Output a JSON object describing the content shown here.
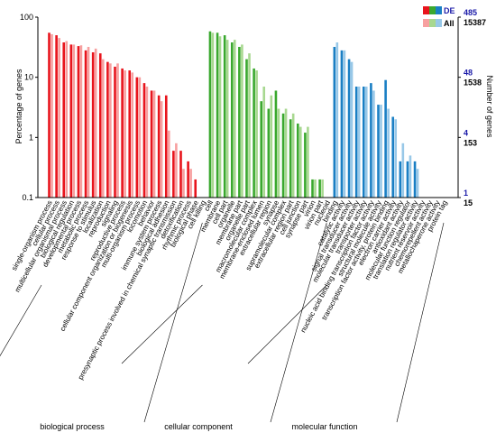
{
  "chart_data": {
    "type": "bar",
    "ylabel_left": "Percentage of genes",
    "ylabel_right": "Number of genes",
    "yscale": "log",
    "ylim": [
      0.1,
      100
    ],
    "left_ticks": [
      "100",
      "10",
      "1",
      "0.1"
    ],
    "right_ticks_de": [
      "485",
      "48",
      "4",
      "1"
    ],
    "right_ticks_all": [
      "15387",
      "1538",
      "153",
      "15"
    ],
    "legend": [
      {
        "name": "DE",
        "colors": [
          "#e8141c",
          "#3aa82e",
          "#1a7fc4"
        ]
      },
      {
        "name": "All",
        "colors": [
          "#f7a0a0",
          "#a8d890",
          "#98c8e8"
        ]
      }
    ],
    "groups": [
      {
        "name": "biological process",
        "color_de": "#e8141c",
        "color_all": "#f7a0a0"
      },
      {
        "name": "cellular component",
        "color_de": "#3aa82e",
        "color_all": "#a8d890"
      },
      {
        "name": "molecular function",
        "color_de": "#1a7fc4",
        "color_all": "#98c8e8"
      }
    ],
    "categories": [
      {
        "name": "single-organism process",
        "group": 0,
        "de": 55,
        "all": 52
      },
      {
        "name": "cellular process",
        "group": 0,
        "de": 50,
        "all": 45
      },
      {
        "name": "multicellular organismal process",
        "group": 0,
        "de": 38,
        "all": 40
      },
      {
        "name": "biological regulation",
        "group": 0,
        "de": 35,
        "all": 35
      },
      {
        "name": "developmental process",
        "group": 0,
        "de": 33,
        "all": 34
      },
      {
        "name": "metabolic process",
        "group": 0,
        "de": 28,
        "all": 32
      },
      {
        "name": "response to stimulus",
        "group": 0,
        "de": 26,
        "all": 30
      },
      {
        "name": "localization",
        "group": 0,
        "de": 25,
        "all": 20
      },
      {
        "name": "reproduction",
        "group": 0,
        "de": 18,
        "all": 17
      },
      {
        "name": "signaling",
        "group": 0,
        "de": 15,
        "all": 17
      },
      {
        "name": "reproductive process",
        "group": 0,
        "de": 14,
        "all": 13
      },
      {
        "name": "cellular component organization or biogenesis",
        "group": 0,
        "de": 13,
        "all": 12
      },
      {
        "name": "multi-organism process",
        "group": 0,
        "de": 10,
        "all": 10
      },
      {
        "name": "locomotion",
        "group": 0,
        "de": 8,
        "all": 7
      },
      {
        "name": "behavior",
        "group": 0,
        "de": 6,
        "all": 6
      },
      {
        "name": "immune system process",
        "group": 0,
        "de": 5,
        "all": 4
      },
      {
        "name": "biological adhesion",
        "group": 0,
        "de": 5,
        "all": 1.3
      },
      {
        "name": "presynaptic process involved in chemical synaptic transmission",
        "group": 0,
        "de": 0.6,
        "all": 0.8
      },
      {
        "name": "detoxification",
        "group": 0,
        "de": 0.6,
        "all": 0.3
      },
      {
        "name": "rhythmic process",
        "group": 0,
        "de": 0.4,
        "all": 0.3
      },
      {
        "name": "biological phase",
        "group": 0,
        "de": 0.2,
        "all": 0
      },
      {
        "name": "cell killing",
        "group": 0,
        "de": 0,
        "all": 0
      },
      {
        "name": "cell",
        "group": 1,
        "de": 58,
        "all": 55
      },
      {
        "name": "membrane",
        "group": 1,
        "de": 55,
        "all": 48
      },
      {
        "name": "cell part",
        "group": 1,
        "de": 50,
        "all": 42
      },
      {
        "name": "organelle",
        "group": 1,
        "de": 38,
        "all": 42
      },
      {
        "name": "membrane part",
        "group": 1,
        "de": 32,
        "all": 35
      },
      {
        "name": "organelle part",
        "group": 1,
        "de": 20,
        "all": 25
      },
      {
        "name": "macromolecular complex",
        "group": 1,
        "de": 14,
        "all": 13
      },
      {
        "name": "membrane-enclosed lumen",
        "group": 1,
        "de": 4,
        "all": 7
      },
      {
        "name": "extracellular region",
        "group": 1,
        "de": 3,
        "all": 5
      },
      {
        "name": "synapse",
        "group": 1,
        "de": 6,
        "all": 3
      },
      {
        "name": "supramolecular complex",
        "group": 1,
        "de": 2.5,
        "all": 3
      },
      {
        "name": "extracellular region part",
        "group": 1,
        "de": 2,
        "all": 2.5
      },
      {
        "name": "cell junction",
        "group": 1,
        "de": 1.7,
        "all": 1.5
      },
      {
        "name": "synapse part",
        "group": 1,
        "de": 1.2,
        "all": 1.5
      },
      {
        "name": "virion",
        "group": 1,
        "de": 0.2,
        "all": 0.2
      },
      {
        "name": "virion part",
        "group": 1,
        "de": 0.2,
        "all": 0.2
      },
      {
        "name": "nucleoid",
        "group": 1,
        "de": 0,
        "all": 0
      },
      {
        "name": "binding",
        "group": 2,
        "de": 32,
        "all": 38
      },
      {
        "name": "catalytic activity",
        "group": 2,
        "de": 28,
        "all": 28
      },
      {
        "name": "signal transducer activity",
        "group": 2,
        "de": 20,
        "all": 18
      },
      {
        "name": "molecular transducer activity",
        "group": 2,
        "de": 7,
        "all": 7
      },
      {
        "name": "transporter activity",
        "group": 2,
        "de": 7,
        "all": 7
      },
      {
        "name": "nucleic acid binding transcription factor activity",
        "group": 2,
        "de": 8,
        "all": 6
      },
      {
        "name": "structural molecule activity",
        "group": 2,
        "de": 3.5,
        "all": 3.5
      },
      {
        "name": "transcription factor activity, protein binding",
        "group": 2,
        "de": 9,
        "all": 3
      },
      {
        "name": "electron carrier activity",
        "group": 2,
        "de": 2.2,
        "all": 2
      },
      {
        "name": "antioxidant activity",
        "group": 2,
        "de": 0.4,
        "all": 0.8
      },
      {
        "name": "molecular function regulator",
        "group": 2,
        "de": 0.4,
        "all": 0.5
      },
      {
        "name": "translation regulator activity",
        "group": 2,
        "de": 0.4,
        "all": 0.3
      },
      {
        "name": "nutrient reservoir activity",
        "group": 2,
        "de": 0,
        "all": 0
      },
      {
        "name": "chemorepellent activity",
        "group": 2,
        "de": 0,
        "all": 0
      },
      {
        "name": "metallochaperone activity",
        "group": 2,
        "de": 0,
        "all": 0
      },
      {
        "name": "protein tag",
        "group": 2,
        "de": 0,
        "all": 0
      }
    ]
  }
}
